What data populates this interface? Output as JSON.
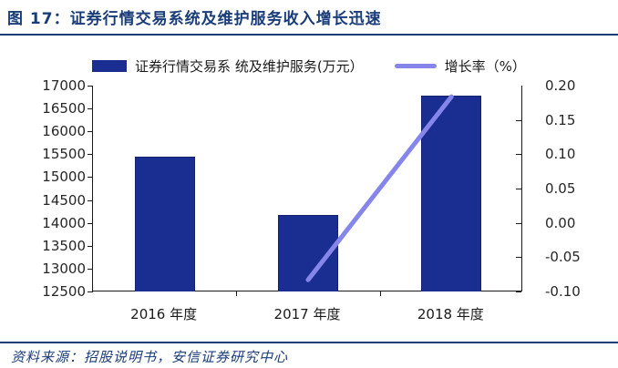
{
  "title": {
    "text": "图 17：证券行情交易系统及维护服务收入增长迅速"
  },
  "source": {
    "text": "资料来源：招股说明书，安信证券研究中心"
  },
  "colors": {
    "accent_navy": "#1A3C78",
    "bar_fill": "#1A2D91",
    "bar_edge": "#13216E",
    "line": "#8585EA",
    "axis": "#1A1A1A",
    "tick_label": "#262626"
  },
  "chart_data": {
    "type": "bar",
    "subtype": "bar-line-combo-dual-axis",
    "categories": [
      "2016 年度",
      "2017 年度",
      "2018 年度"
    ],
    "series": [
      {
        "name": "证券行情交易系 统及维护服务(万元）",
        "type": "bar",
        "axis": "left",
        "color": "#1A2D91",
        "values": [
          15450,
          14170,
          16780
        ]
      },
      {
        "name": "增长率（%）",
        "type": "line",
        "axis": "right",
        "color": "#8585EA",
        "values": [
          null,
          -0.083,
          0.184
        ]
      }
    ],
    "left_axis": {
      "min": 12500,
      "max": 17000,
      "step": 500,
      "tick_labels": [
        "17000",
        "16500",
        "16000",
        "15500",
        "15000",
        "14500",
        "14000",
        "13500",
        "13000",
        "12500"
      ]
    },
    "right_axis": {
      "min": -0.1,
      "max": 0.2,
      "step": 0.05,
      "tick_labels": [
        "0.20",
        "0.15",
        "0.10",
        "0.05",
        "0.00",
        "-0.05",
        "-0.10"
      ]
    },
    "grid": false,
    "legend_position": "top"
  }
}
